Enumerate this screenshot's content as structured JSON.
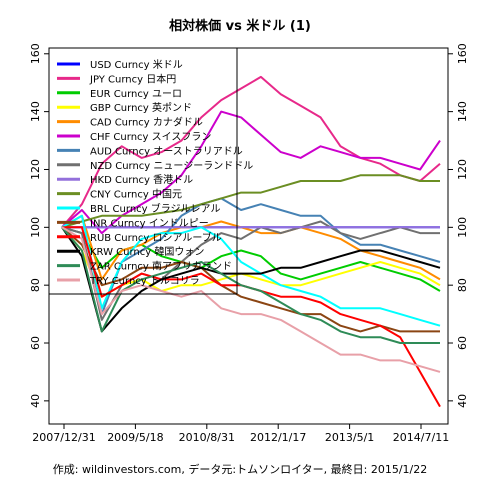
{
  "chart_data": {
    "type": "line",
    "title": "相対株価 vs 米ドル (1)",
    "caption": "作成: wildinvestors.com, データ元:トムソンロイター, 最終日: 2015/1/22",
    "x_tick_labels": [
      "2007/12/31",
      "2009/5/18",
      "2010/8/31",
      "2012/1/17",
      "2013/5/1",
      "2014/7/11"
    ],
    "y_ticks": [
      40,
      60,
      80,
      100,
      120,
      140,
      160
    ],
    "ylim": [
      32,
      162
    ],
    "grid": false,
    "legend_position": "top-left",
    "series": [
      {
        "name": "USD Curncy 米ドル",
        "color": "#0000ff",
        "values": [
          100,
          100,
          100,
          100,
          100,
          100,
          100,
          100,
          100,
          100,
          100,
          100,
          100,
          100,
          100,
          100,
          100,
          100,
          100,
          100
        ]
      },
      {
        "name": "JPY Curncy 日本円",
        "color": "#e7298a",
        "values": [
          100,
          108,
          122,
          128,
          124,
          126,
          130,
          138,
          144,
          148,
          152,
          146,
          142,
          138,
          128,
          124,
          122,
          118,
          116,
          122
        ]
      },
      {
        "name": "EUR Curncy ユーロ",
        "color": "#00cc00",
        "values": [
          100,
          98,
          86,
          92,
          94,
          90,
          88,
          86,
          90,
          92,
          90,
          84,
          82,
          84,
          86,
          88,
          86,
          84,
          82,
          78
        ]
      },
      {
        "name": "GBP Curncy 英ポンド",
        "color": "#ffff00",
        "values": [
          100,
          92,
          76,
          80,
          82,
          78,
          80,
          80,
          82,
          84,
          82,
          80,
          80,
          82,
          84,
          86,
          88,
          86,
          84,
          80
        ]
      },
      {
        "name": "CAD Curncy カナダドル",
        "color": "#ff8c00",
        "values": [
          100,
          104,
          82,
          92,
          94,
          98,
          100,
          100,
          102,
          100,
          98,
          98,
          100,
          98,
          96,
          92,
          90,
          88,
          86,
          82
        ]
      },
      {
        "name": "CHF Curncy スイスフラン",
        "color": "#cc00cc",
        "values": [
          100,
          106,
          98,
          104,
          108,
          112,
          118,
          128,
          140,
          138,
          132,
          126,
          124,
          128,
          126,
          124,
          124,
          122,
          120,
          130
        ]
      },
      {
        "name": "AUD Curncy オーストラリアドル",
        "color": "#4682b4",
        "values": [
          100,
          98,
          70,
          88,
          92,
          96,
          104,
          108,
          110,
          106,
          108,
          106,
          104,
          104,
          98,
          94,
          94,
          92,
          90,
          88
        ]
      },
      {
        "name": "NZD Curncy ニュージーランドドル",
        "color": "#707070",
        "values": [
          100,
          98,
          68,
          80,
          84,
          82,
          88,
          94,
          98,
          96,
          100,
          98,
          100,
          102,
          98,
          96,
          98,
          100,
          98,
          98
        ]
      },
      {
        "name": "HKD Curncy 香港ドル",
        "color": "#9370db",
        "values": [
          100,
          100,
          100,
          100,
          100,
          100,
          100,
          100,
          100,
          100,
          100,
          100,
          100,
          100,
          100,
          100,
          100,
          100,
          100,
          100
        ]
      },
      {
        "name": "CNY Curncy 中国元",
        "color": "#6b8e23",
        "values": [
          100,
          102,
          104,
          104,
          104,
          105,
          106,
          108,
          110,
          112,
          112,
          114,
          116,
          116,
          116,
          118,
          118,
          118,
          116,
          116
        ]
      },
      {
        "name": "BRL Curncy ブラジルレアル",
        "color": "#00ffff",
        "values": [
          100,
          104,
          72,
          88,
          96,
          98,
          98,
          100,
          96,
          88,
          84,
          80,
          78,
          76,
          72,
          72,
          72,
          70,
          68,
          66
        ]
      },
      {
        "name": "INR Curncy インドルピー",
        "color": "#8b4513",
        "values": [
          100,
          94,
          80,
          82,
          86,
          86,
          88,
          86,
          80,
          76,
          74,
          72,
          70,
          70,
          66,
          64,
          66,
          64,
          64,
          64
        ]
      },
      {
        "name": "RUB Curncy ロシアルーブル",
        "color": "#ff0000",
        "values": [
          100,
          100,
          76,
          80,
          84,
          82,
          82,
          84,
          80,
          80,
          78,
          76,
          76,
          74,
          70,
          68,
          66,
          62,
          50,
          38
        ]
      },
      {
        "name": "KRW Curncy 韓国ウォン",
        "color": "#000000",
        "values": [
          100,
          90,
          64,
          72,
          78,
          82,
          84,
          86,
          84,
          84,
          84,
          86,
          86,
          88,
          90,
          92,
          92,
          90,
          88,
          86
        ]
      },
      {
        "name": "ZAR Curncy 南アフリカランド",
        "color": "#2e8b57",
        "values": [
          100,
          92,
          64,
          78,
          82,
          84,
          86,
          88,
          84,
          80,
          78,
          74,
          70,
          68,
          64,
          62,
          62,
          60,
          60,
          60
        ]
      },
      {
        "name": "TRY Curncy トルコリラ",
        "color": "#e8a0a8",
        "values": [
          100,
          96,
          70,
          78,
          80,
          78,
          76,
          78,
          72,
          70,
          70,
          68,
          64,
          60,
          56,
          56,
          54,
          54,
          52,
          50
        ]
      }
    ]
  }
}
